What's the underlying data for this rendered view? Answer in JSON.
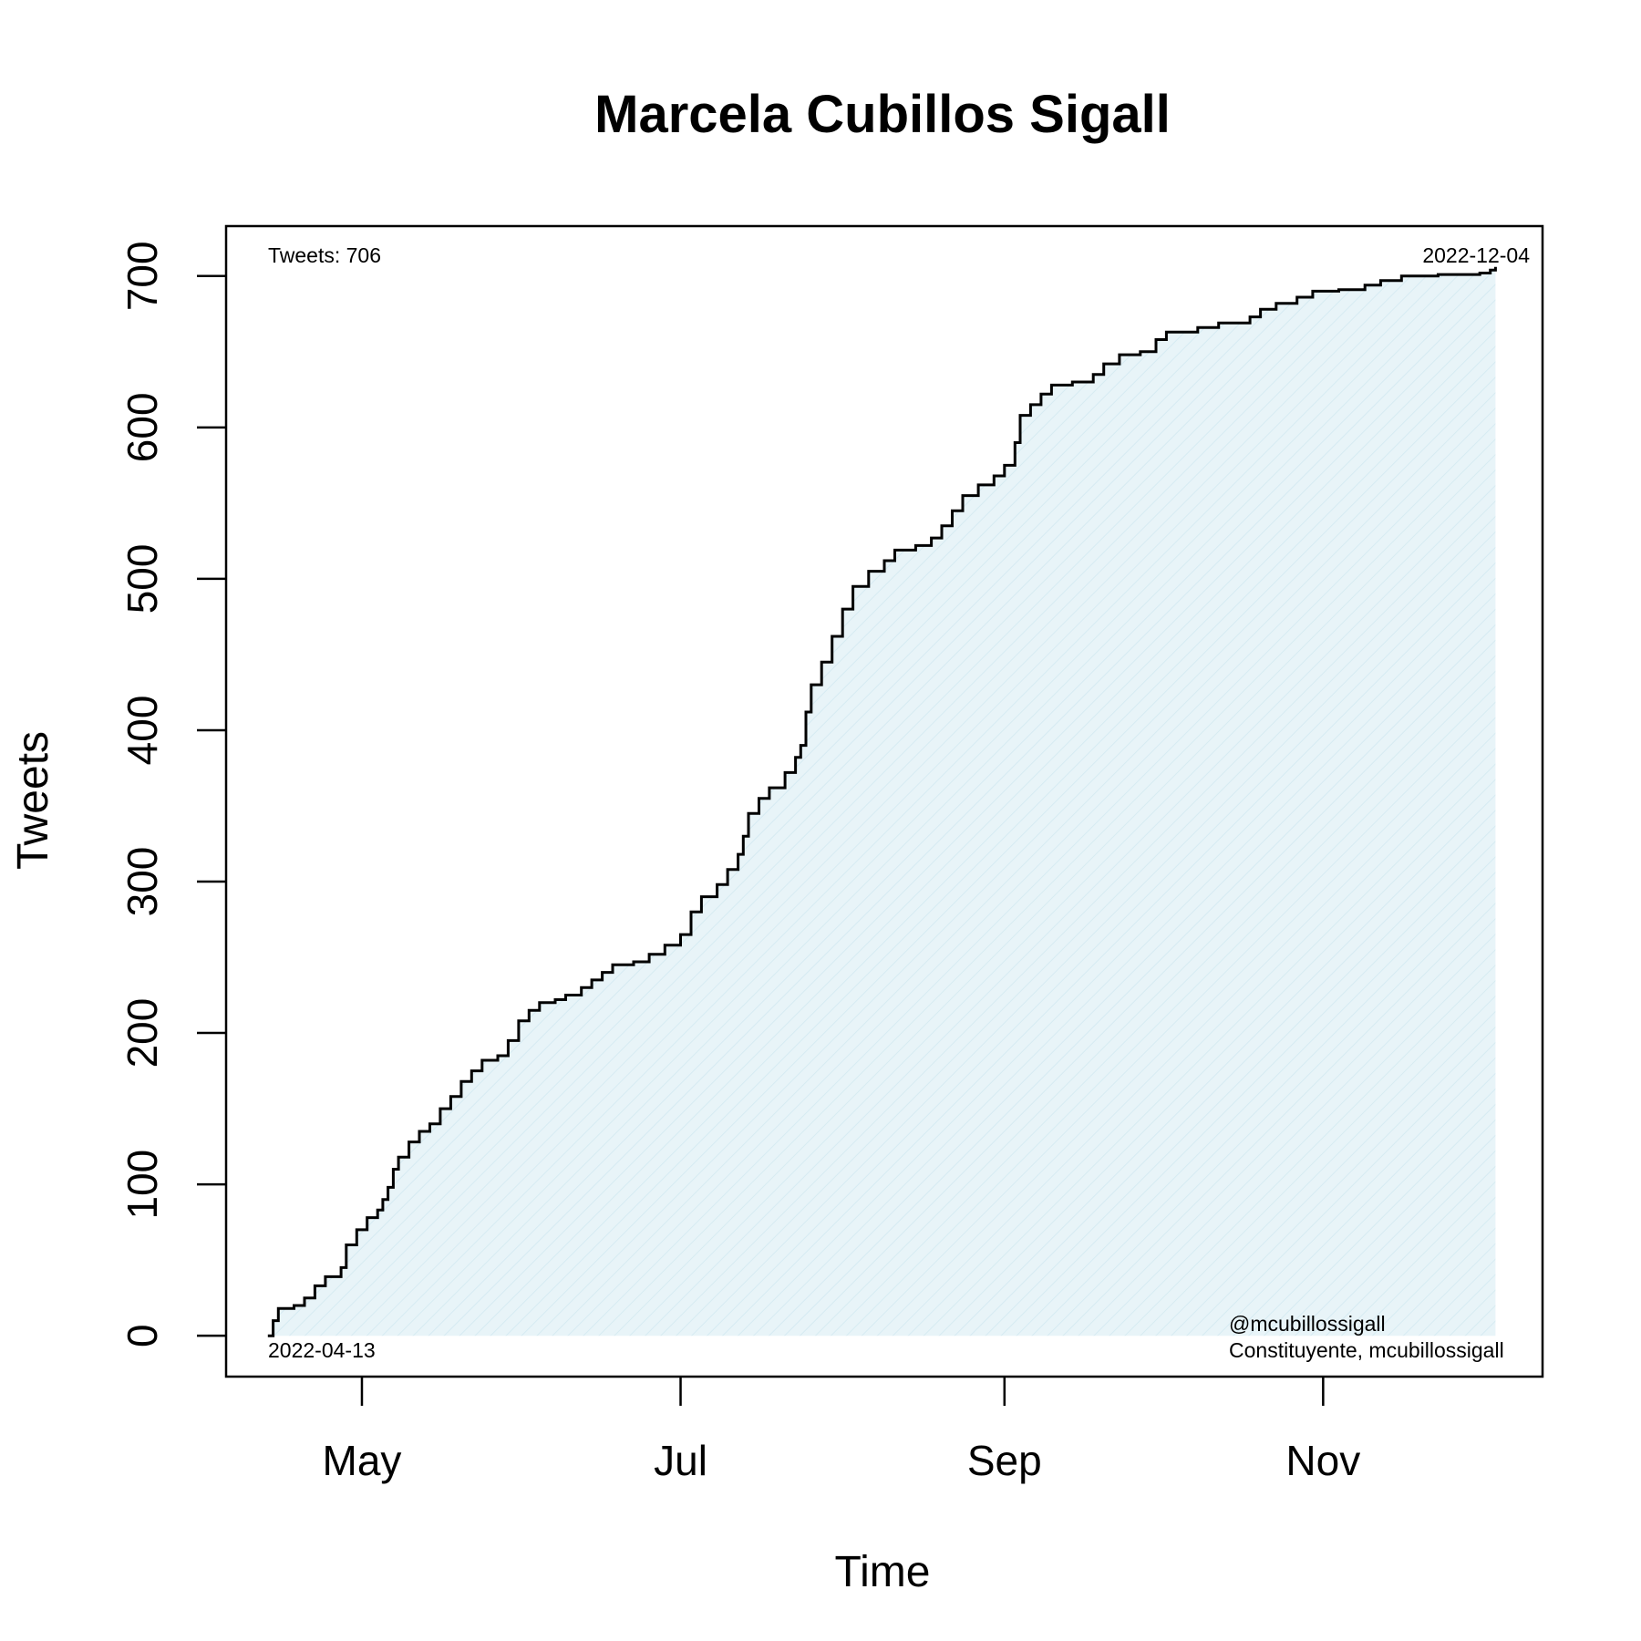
{
  "chart_data": {
    "type": "area",
    "title": "Marcela Cubillos Sigall",
    "xlabel": "Time",
    "ylabel": "Tweets",
    "x_ticks": [
      {
        "date": "2022-05-01",
        "label": "May"
      },
      {
        "date": "2022-07-01",
        "label": "Jul"
      },
      {
        "date": "2022-09-01",
        "label": "Sep"
      },
      {
        "date": "2022-11-01",
        "label": "Nov"
      }
    ],
    "y_ticks": [
      0,
      100,
      200,
      300,
      400,
      500,
      600,
      700
    ],
    "xlim": [
      "2022-04-05",
      "2022-12-13"
    ],
    "ylim": [
      -27,
      733
    ],
    "grid": false,
    "legend": "none",
    "colors": {
      "line": "#000000",
      "fill": "#e8f4f8",
      "hatch": "#d6ebf2"
    },
    "annotations": {
      "top_left": "Tweets: 706",
      "top_right": "2022-12-04",
      "bottom_left": "2022-04-13",
      "bottom_right_1": "@mcubillossigall",
      "bottom_right_2": "Constituyente, mcubillossigall"
    },
    "series": [
      {
        "points": [
          [
            "2022-04-13",
            0
          ],
          [
            "2022-04-14",
            10
          ],
          [
            "2022-04-15",
            18
          ],
          [
            "2022-04-18",
            20
          ],
          [
            "2022-04-20",
            25
          ],
          [
            "2022-04-22",
            33
          ],
          [
            "2022-04-24",
            39
          ],
          [
            "2022-04-27",
            45
          ],
          [
            "2022-04-28",
            60
          ],
          [
            "2022-04-30",
            70
          ],
          [
            "2022-05-02",
            78
          ],
          [
            "2022-05-04",
            83
          ],
          [
            "2022-05-05",
            90
          ],
          [
            "2022-05-06",
            98
          ],
          [
            "2022-05-07",
            110
          ],
          [
            "2022-05-08",
            118
          ],
          [
            "2022-05-10",
            128
          ],
          [
            "2022-05-12",
            135
          ],
          [
            "2022-05-14",
            140
          ],
          [
            "2022-05-16",
            150
          ],
          [
            "2022-05-18",
            158
          ],
          [
            "2022-05-20",
            168
          ],
          [
            "2022-05-22",
            175
          ],
          [
            "2022-05-24",
            182
          ],
          [
            "2022-05-27",
            185
          ],
          [
            "2022-05-29",
            195
          ],
          [
            "2022-05-31",
            208
          ],
          [
            "2022-06-02",
            215
          ],
          [
            "2022-06-04",
            220
          ],
          [
            "2022-06-07",
            222
          ],
          [
            "2022-06-09",
            225
          ],
          [
            "2022-06-12",
            230
          ],
          [
            "2022-06-14",
            235
          ],
          [
            "2022-06-16",
            240
          ],
          [
            "2022-06-18",
            245
          ],
          [
            "2022-06-22",
            247
          ],
          [
            "2022-06-25",
            252
          ],
          [
            "2022-06-28",
            258
          ],
          [
            "2022-07-01",
            265
          ],
          [
            "2022-07-03",
            280
          ],
          [
            "2022-07-05",
            290
          ],
          [
            "2022-07-08",
            298
          ],
          [
            "2022-07-10",
            308
          ],
          [
            "2022-07-12",
            318
          ],
          [
            "2022-07-13",
            330
          ],
          [
            "2022-07-14",
            345
          ],
          [
            "2022-07-16",
            355
          ],
          [
            "2022-07-18",
            362
          ],
          [
            "2022-07-21",
            372
          ],
          [
            "2022-07-23",
            382
          ],
          [
            "2022-07-24",
            390
          ],
          [
            "2022-07-25",
            412
          ],
          [
            "2022-07-26",
            430
          ],
          [
            "2022-07-28",
            445
          ],
          [
            "2022-07-30",
            462
          ],
          [
            "2022-08-01",
            480
          ],
          [
            "2022-08-03",
            495
          ],
          [
            "2022-08-06",
            505
          ],
          [
            "2022-08-09",
            512
          ],
          [
            "2022-08-11",
            519
          ],
          [
            "2022-08-15",
            522
          ],
          [
            "2022-08-18",
            527
          ],
          [
            "2022-08-20",
            535
          ],
          [
            "2022-08-22",
            545
          ],
          [
            "2022-08-24",
            555
          ],
          [
            "2022-08-27",
            562
          ],
          [
            "2022-08-30",
            568
          ],
          [
            "2022-09-01",
            575
          ],
          [
            "2022-09-03",
            590
          ],
          [
            "2022-09-04",
            608
          ],
          [
            "2022-09-06",
            615
          ],
          [
            "2022-09-08",
            622
          ],
          [
            "2022-09-10",
            628
          ],
          [
            "2022-09-14",
            630
          ],
          [
            "2022-09-18",
            635
          ],
          [
            "2022-09-20",
            642
          ],
          [
            "2022-09-23",
            648
          ],
          [
            "2022-09-27",
            650
          ],
          [
            "2022-09-30",
            658
          ],
          [
            "2022-10-02",
            663
          ],
          [
            "2022-10-08",
            666
          ],
          [
            "2022-10-12",
            669
          ],
          [
            "2022-10-18",
            673
          ],
          [
            "2022-10-20",
            678
          ],
          [
            "2022-10-23",
            682
          ],
          [
            "2022-10-27",
            686
          ],
          [
            "2022-10-30",
            690
          ],
          [
            "2022-11-04",
            691
          ],
          [
            "2022-11-09",
            694
          ],
          [
            "2022-11-12",
            697
          ],
          [
            "2022-11-16",
            700
          ],
          [
            "2022-11-23",
            701
          ],
          [
            "2022-12-01",
            702
          ],
          [
            "2022-12-03",
            704
          ],
          [
            "2022-12-04",
            706
          ]
        ]
      }
    ]
  }
}
